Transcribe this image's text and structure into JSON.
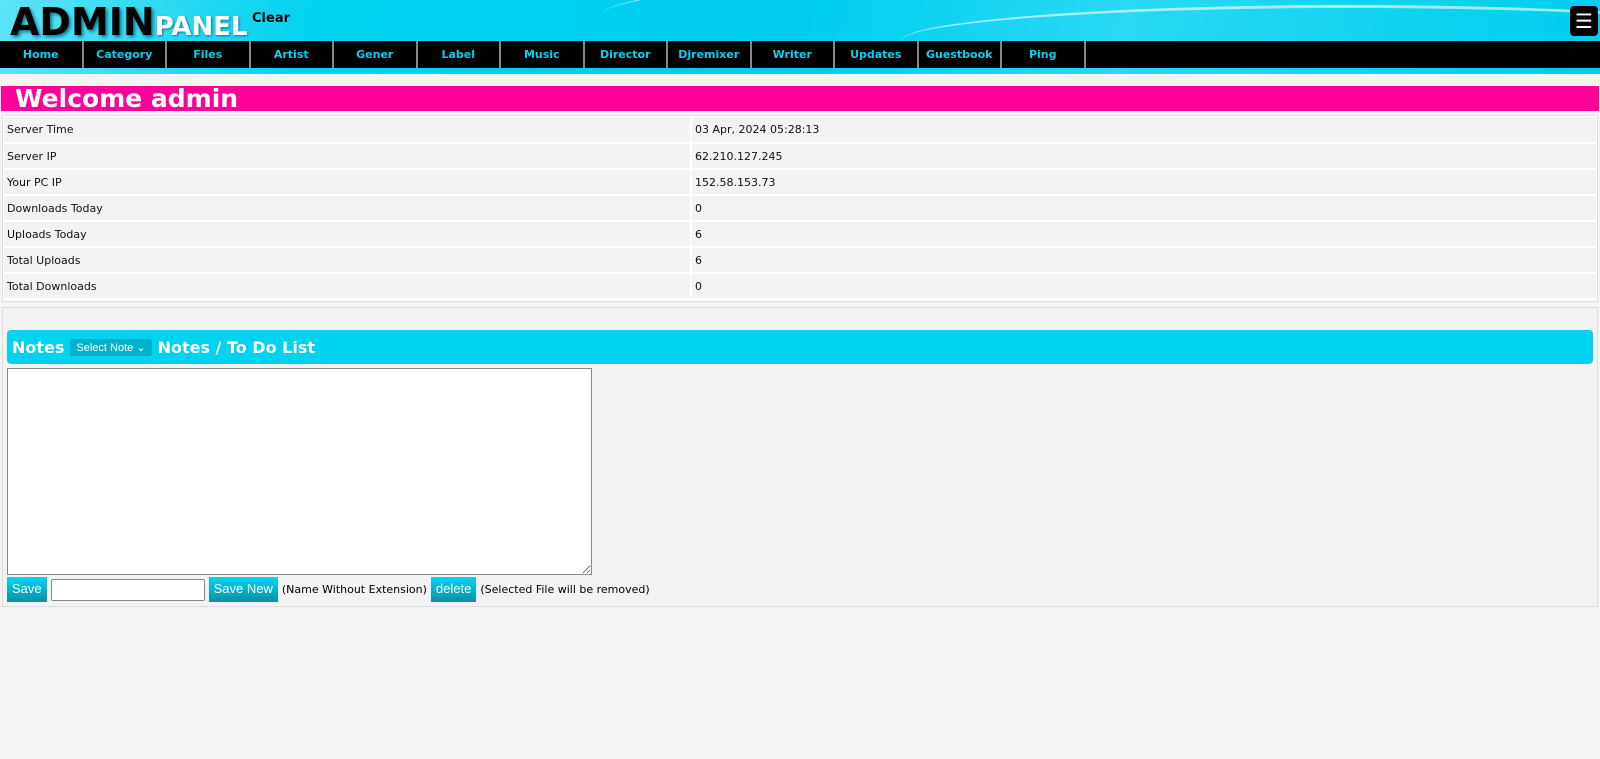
{
  "header": {
    "logo_main": "ADMIN",
    "logo_sub": "PANEL",
    "clear": "Clear",
    "menu_icon": "☰"
  },
  "nav": [
    "Home",
    "Category",
    "Files",
    "Artist",
    "Gener",
    "Label",
    "Music",
    "Director",
    "Djremixer",
    "Writer",
    "Updates",
    "Guestbook",
    "Ping"
  ],
  "welcome": "Welcome admin",
  "info": [
    [
      "Server Time",
      "03 Apr, 2024 05:28:13"
    ],
    [
      "Server IP",
      "62.210.127.245"
    ],
    [
      "Your PC IP",
      "152.58.153.73"
    ],
    [
      "Downloads Today",
      "0"
    ],
    [
      "Uploads Today",
      "6"
    ],
    [
      "Total Uploads",
      "6"
    ],
    [
      "Total Downloads",
      "0"
    ]
  ],
  "notes": {
    "label": "Notes",
    "select": "Select Note",
    "title": "Notes / To Do List",
    "save": "Save",
    "save_new": "Save New",
    "name_hint": "(Name Without Extension)",
    "delete": "delete",
    "delete_hint": "(Selected File will be removed)"
  }
}
